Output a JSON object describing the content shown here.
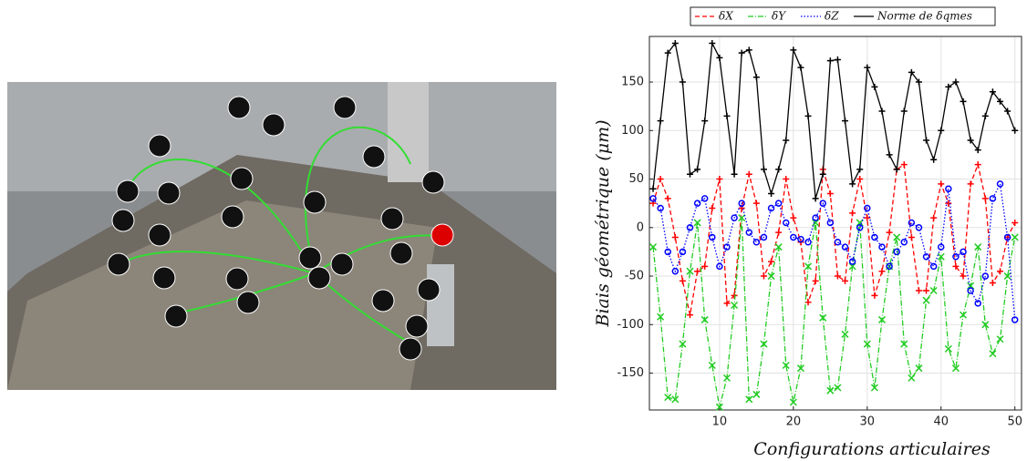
{
  "chart_data": {
    "type": "line",
    "xlabel": "Configurations articulaires",
    "ylabel": "Biais géométrique (μm)",
    "x": [
      1,
      2,
      3,
      4,
      5,
      6,
      7,
      8,
      9,
      10,
      11,
      12,
      13,
      14,
      15,
      16,
      17,
      18,
      19,
      20,
      21,
      22,
      23,
      24,
      25,
      26,
      27,
      28,
      29,
      30,
      31,
      32,
      33,
      34,
      35,
      36,
      37,
      38,
      39,
      40,
      41,
      42,
      43,
      44,
      45,
      46,
      47,
      48,
      49,
      50
    ],
    "xlim": [
      0.5,
      50.9
    ],
    "xticks": [
      10,
      20,
      30,
      40,
      50
    ],
    "ylim": [
      -188,
      197
    ],
    "yticks": [
      -150,
      -100,
      -50,
      0,
      50,
      100,
      150
    ],
    "grid": true,
    "series": [
      {
        "name": "δX",
        "color": "#ff0000",
        "dash": "5,3",
        "marker": "plus",
        "values": [
          25,
          50,
          30,
          -10,
          -55,
          -90,
          -45,
          -40,
          20,
          50,
          -78,
          -70,
          20,
          55,
          25,
          -50,
          -35,
          -5,
          50,
          10,
          -15,
          -77,
          -55,
          60,
          35,
          -50,
          -55,
          15,
          50,
          10,
          -70,
          -45,
          -5,
          60,
          65,
          -10,
          -65,
          -65,
          10,
          45,
          25,
          -40,
          -50,
          45,
          65,
          30,
          -57,
          -45,
          -10,
          5
        ]
      },
      {
        "name": "δY",
        "color": "#22cc22",
        "dash": "6,2,1,2",
        "marker": "cross",
        "values": [
          -20,
          -92,
          -175,
          -177,
          -120,
          -45,
          5,
          -95,
          -142,
          -185,
          -155,
          -80,
          10,
          -177,
          -172,
          -120,
          -50,
          -20,
          -142,
          -180,
          -145,
          -40,
          5,
          -93,
          -168,
          -165,
          -110,
          -40,
          5,
          -120,
          -165,
          -95,
          -40,
          -10,
          -120,
          -155,
          -145,
          -75,
          -65,
          -30,
          -125,
          -145,
          -90,
          -60,
          -20,
          -100,
          -130,
          -115,
          -50,
          -10
        ]
      },
      {
        "name": "δZ",
        "color": "#0000ff",
        "dash": "1.5,2",
        "marker": "circle",
        "values": [
          30,
          20,
          -25,
          -45,
          -25,
          0,
          25,
          30,
          -10,
          -40,
          -20,
          10,
          25,
          -5,
          -15,
          -10,
          20,
          25,
          5,
          -10,
          -12,
          -15,
          10,
          25,
          5,
          -15,
          -20,
          -35,
          0,
          20,
          -10,
          -20,
          -40,
          -25,
          -15,
          5,
          0,
          -30,
          -40,
          -20,
          40,
          -30,
          -25,
          -65,
          -78,
          -50,
          30,
          45,
          -10,
          -95
        ]
      },
      {
        "name": "Norme de δqmes",
        "color": "#000000",
        "dash": "none",
        "marker": "plus",
        "values": [
          40,
          110,
          180,
          190,
          150,
          55,
          60,
          110,
          190,
          175,
          115,
          55,
          180,
          183,
          155,
          60,
          35,
          60,
          90,
          183,
          165,
          115,
          30,
          55,
          172,
          173,
          110,
          45,
          60,
          165,
          145,
          120,
          75,
          60,
          120,
          160,
          150,
          90,
          70,
          100,
          145,
          150,
          130,
          90,
          80,
          115,
          140,
          130,
          120,
          100
        ]
      }
    ]
  }
}
